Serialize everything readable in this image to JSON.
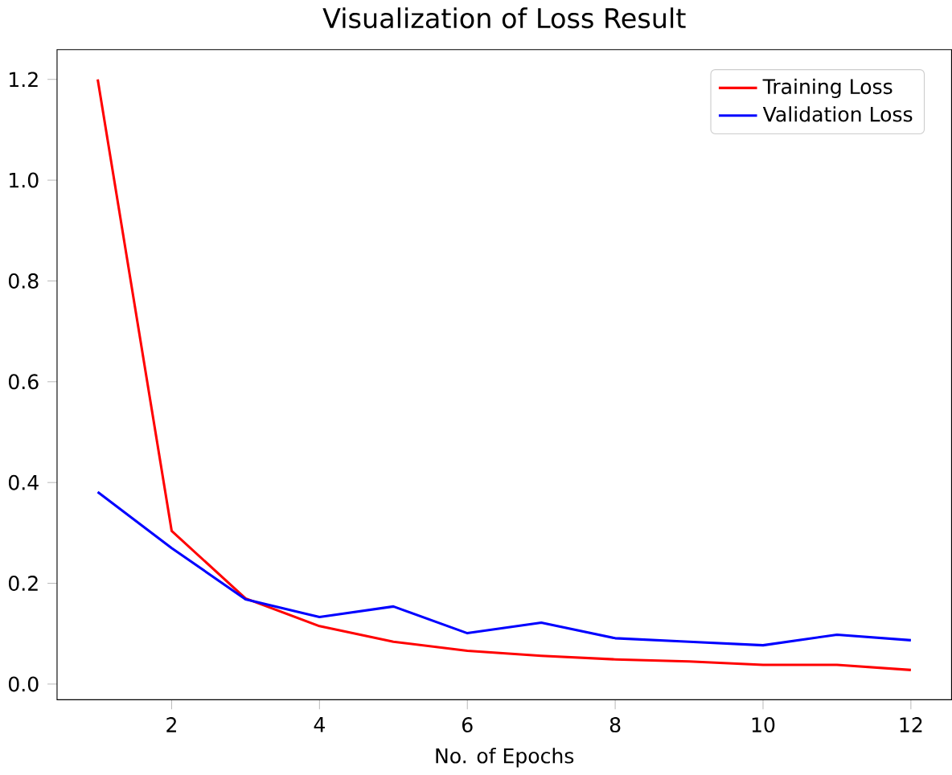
{
  "chart_data": {
    "type": "line",
    "title": "Visualization of Loss Result",
    "xlabel": "No. of Epochs",
    "x": [
      1,
      2,
      3,
      4,
      5,
      6,
      7,
      8,
      9,
      10,
      11,
      12
    ],
    "series": [
      {
        "name": "Training Loss",
        "color": "#ff0000",
        "values": [
          1.2,
          0.304,
          0.17,
          0.115,
          0.084,
          0.066,
          0.056,
          0.049,
          0.045,
          0.038,
          0.038,
          0.028
        ]
      },
      {
        "name": "Validation Loss",
        "color": "#0000ff",
        "values": [
          0.381,
          0.27,
          0.168,
          0.133,
          0.154,
          0.101,
          0.122,
          0.091,
          0.084,
          0.077,
          0.098,
          0.087
        ]
      }
    ],
    "xlim": [
      0.45,
      12.55
    ],
    "ylim": [
      -0.031,
      1.259
    ],
    "xticks": [
      2,
      4,
      6,
      8,
      10,
      12
    ],
    "yticks": [
      {
        "value": 0,
        "label": "0.0"
      },
      {
        "value": 0.2,
        "label": "0.2"
      },
      {
        "value": 0.4,
        "label": "0.4"
      },
      {
        "value": 0.6,
        "label": "0.6"
      },
      {
        "value": 0.8,
        "label": "0.8"
      },
      {
        "value": 1.0,
        "label": "1.0"
      },
      {
        "value": 1.2,
        "label": "1.2"
      }
    ],
    "legend": "top right",
    "grid": false,
    "marker": "none",
    "line_style": "solid"
  }
}
